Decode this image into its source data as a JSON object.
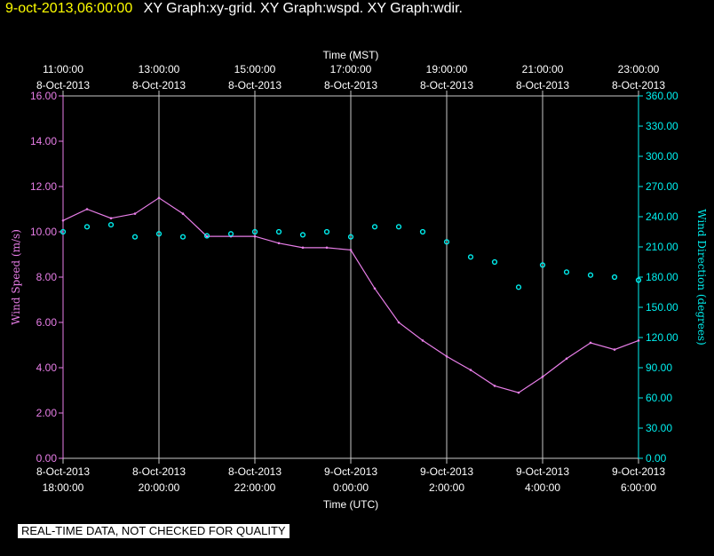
{
  "header": {
    "timestamp": "9-oct-2013,06:00:00",
    "title": "XY Graph:xy-grid.  XY Graph:wspd.  XY Graph:wdir."
  },
  "disclaimer": "REAL-TIME DATA, NOT CHECKED FOR QUALITY",
  "chart_data": {
    "type": "line",
    "title": "",
    "top_axis": {
      "label": "Time (MST)",
      "ticks": [
        {
          "time": "11:00:00",
          "date": "8-Oct-2013"
        },
        {
          "time": "13:00:00",
          "date": "8-Oct-2013"
        },
        {
          "time": "15:00:00",
          "date": "8-Oct-2013"
        },
        {
          "time": "17:00:00",
          "date": "8-Oct-2013"
        },
        {
          "time": "19:00:00",
          "date": "8-Oct-2013"
        },
        {
          "time": "21:00:00",
          "date": "8-Oct-2013"
        },
        {
          "time": "23:00:00",
          "date": "8-Oct-2013"
        }
      ]
    },
    "bottom_axis": {
      "label": "Time (UTC)",
      "xlim": [
        "2013-10-08 18:00",
        "2013-10-09 06:00"
      ],
      "ticks": [
        {
          "date": "8-Oct-2013",
          "time": "18:00:00"
        },
        {
          "date": "8-Oct-2013",
          "time": "20:00:00"
        },
        {
          "date": "8-Oct-2013",
          "time": "22:00:00"
        },
        {
          "date": "9-Oct-2013",
          "time": "0:00:00"
        },
        {
          "date": "9-Oct-2013",
          "time": "2:00:00"
        },
        {
          "date": "9-Oct-2013",
          "time": "4:00:00"
        },
        {
          "date": "9-Oct-2013",
          "time": "6:00:00"
        }
      ]
    },
    "left_axis": {
      "label": "Wind Speed (m/s)",
      "ylim": [
        0,
        16
      ],
      "ticks": [
        "0.00",
        "2.00",
        "4.00",
        "6.00",
        "8.00",
        "10.00",
        "12.00",
        "14.00",
        "16.00"
      ]
    },
    "right_axis": {
      "label": "Wind Direction (degrees)",
      "ylim": [
        0,
        360
      ],
      "ticks": [
        "0.00",
        "30.00",
        "60.00",
        "90.00",
        "120.00",
        "150.00",
        "180.00",
        "210.00",
        "240.00",
        "270.00",
        "300.00",
        "330.00",
        "360.00"
      ]
    },
    "grid": "vertical",
    "colors": {
      "wind_speed": "#e87ee8",
      "wind_direction": "#00f0f0",
      "grid": "#c8c8c8",
      "axes": "#c8c8c8"
    },
    "series": [
      {
        "key": "wspd",
        "style": "line",
        "x": [
          "2013-10-08 18:00",
          "2013-10-08 18:30",
          "2013-10-08 19:00",
          "2013-10-08 19:30",
          "2013-10-08 20:00",
          "2013-10-08 20:30",
          "2013-10-08 21:00",
          "2013-10-08 21:30",
          "2013-10-08 22:00",
          "2013-10-08 22:30",
          "2013-10-08 23:00",
          "2013-10-08 23:30",
          "2013-10-09 00:00",
          "2013-10-09 00:30",
          "2013-10-09 01:00",
          "2013-10-09 01:30",
          "2013-10-09 02:00",
          "2013-10-09 02:30",
          "2013-10-09 03:00",
          "2013-10-09 03:30",
          "2013-10-09 04:00",
          "2013-10-09 04:30",
          "2013-10-09 05:00",
          "2013-10-09 05:30",
          "2013-10-09 06:00"
        ],
        "values": [
          10.5,
          11.0,
          10.6,
          10.8,
          11.5,
          10.8,
          9.8,
          9.8,
          9.8,
          9.5,
          9.3,
          9.3,
          9.2,
          7.5,
          6.0,
          5.2,
          4.5,
          3.9,
          3.2,
          2.9,
          3.6,
          4.4,
          5.1,
          4.8,
          5.2
        ]
      },
      {
        "key": "wdir",
        "style": "markers",
        "x": [
          "2013-10-08 18:00",
          "2013-10-08 18:30",
          "2013-10-08 19:00",
          "2013-10-08 19:30",
          "2013-10-08 20:00",
          "2013-10-08 20:30",
          "2013-10-08 21:00",
          "2013-10-08 21:30",
          "2013-10-08 22:00",
          "2013-10-08 22:30",
          "2013-10-08 23:00",
          "2013-10-08 23:30",
          "2013-10-09 00:00",
          "2013-10-09 00:30",
          "2013-10-09 01:00",
          "2013-10-09 01:30",
          "2013-10-09 02:00",
          "2013-10-09 02:30",
          "2013-10-09 03:00",
          "2013-10-09 03:30",
          "2013-10-09 04:00",
          "2013-10-09 04:30",
          "2013-10-09 05:00",
          "2013-10-09 05:30",
          "2013-10-09 06:00"
        ],
        "values": [
          225,
          230,
          232,
          220,
          223,
          220,
          221,
          223,
          225,
          225,
          222,
          225,
          220,
          230,
          230,
          225,
          215,
          200,
          195,
          170,
          192,
          185,
          182,
          180,
          177
        ]
      }
    ]
  }
}
